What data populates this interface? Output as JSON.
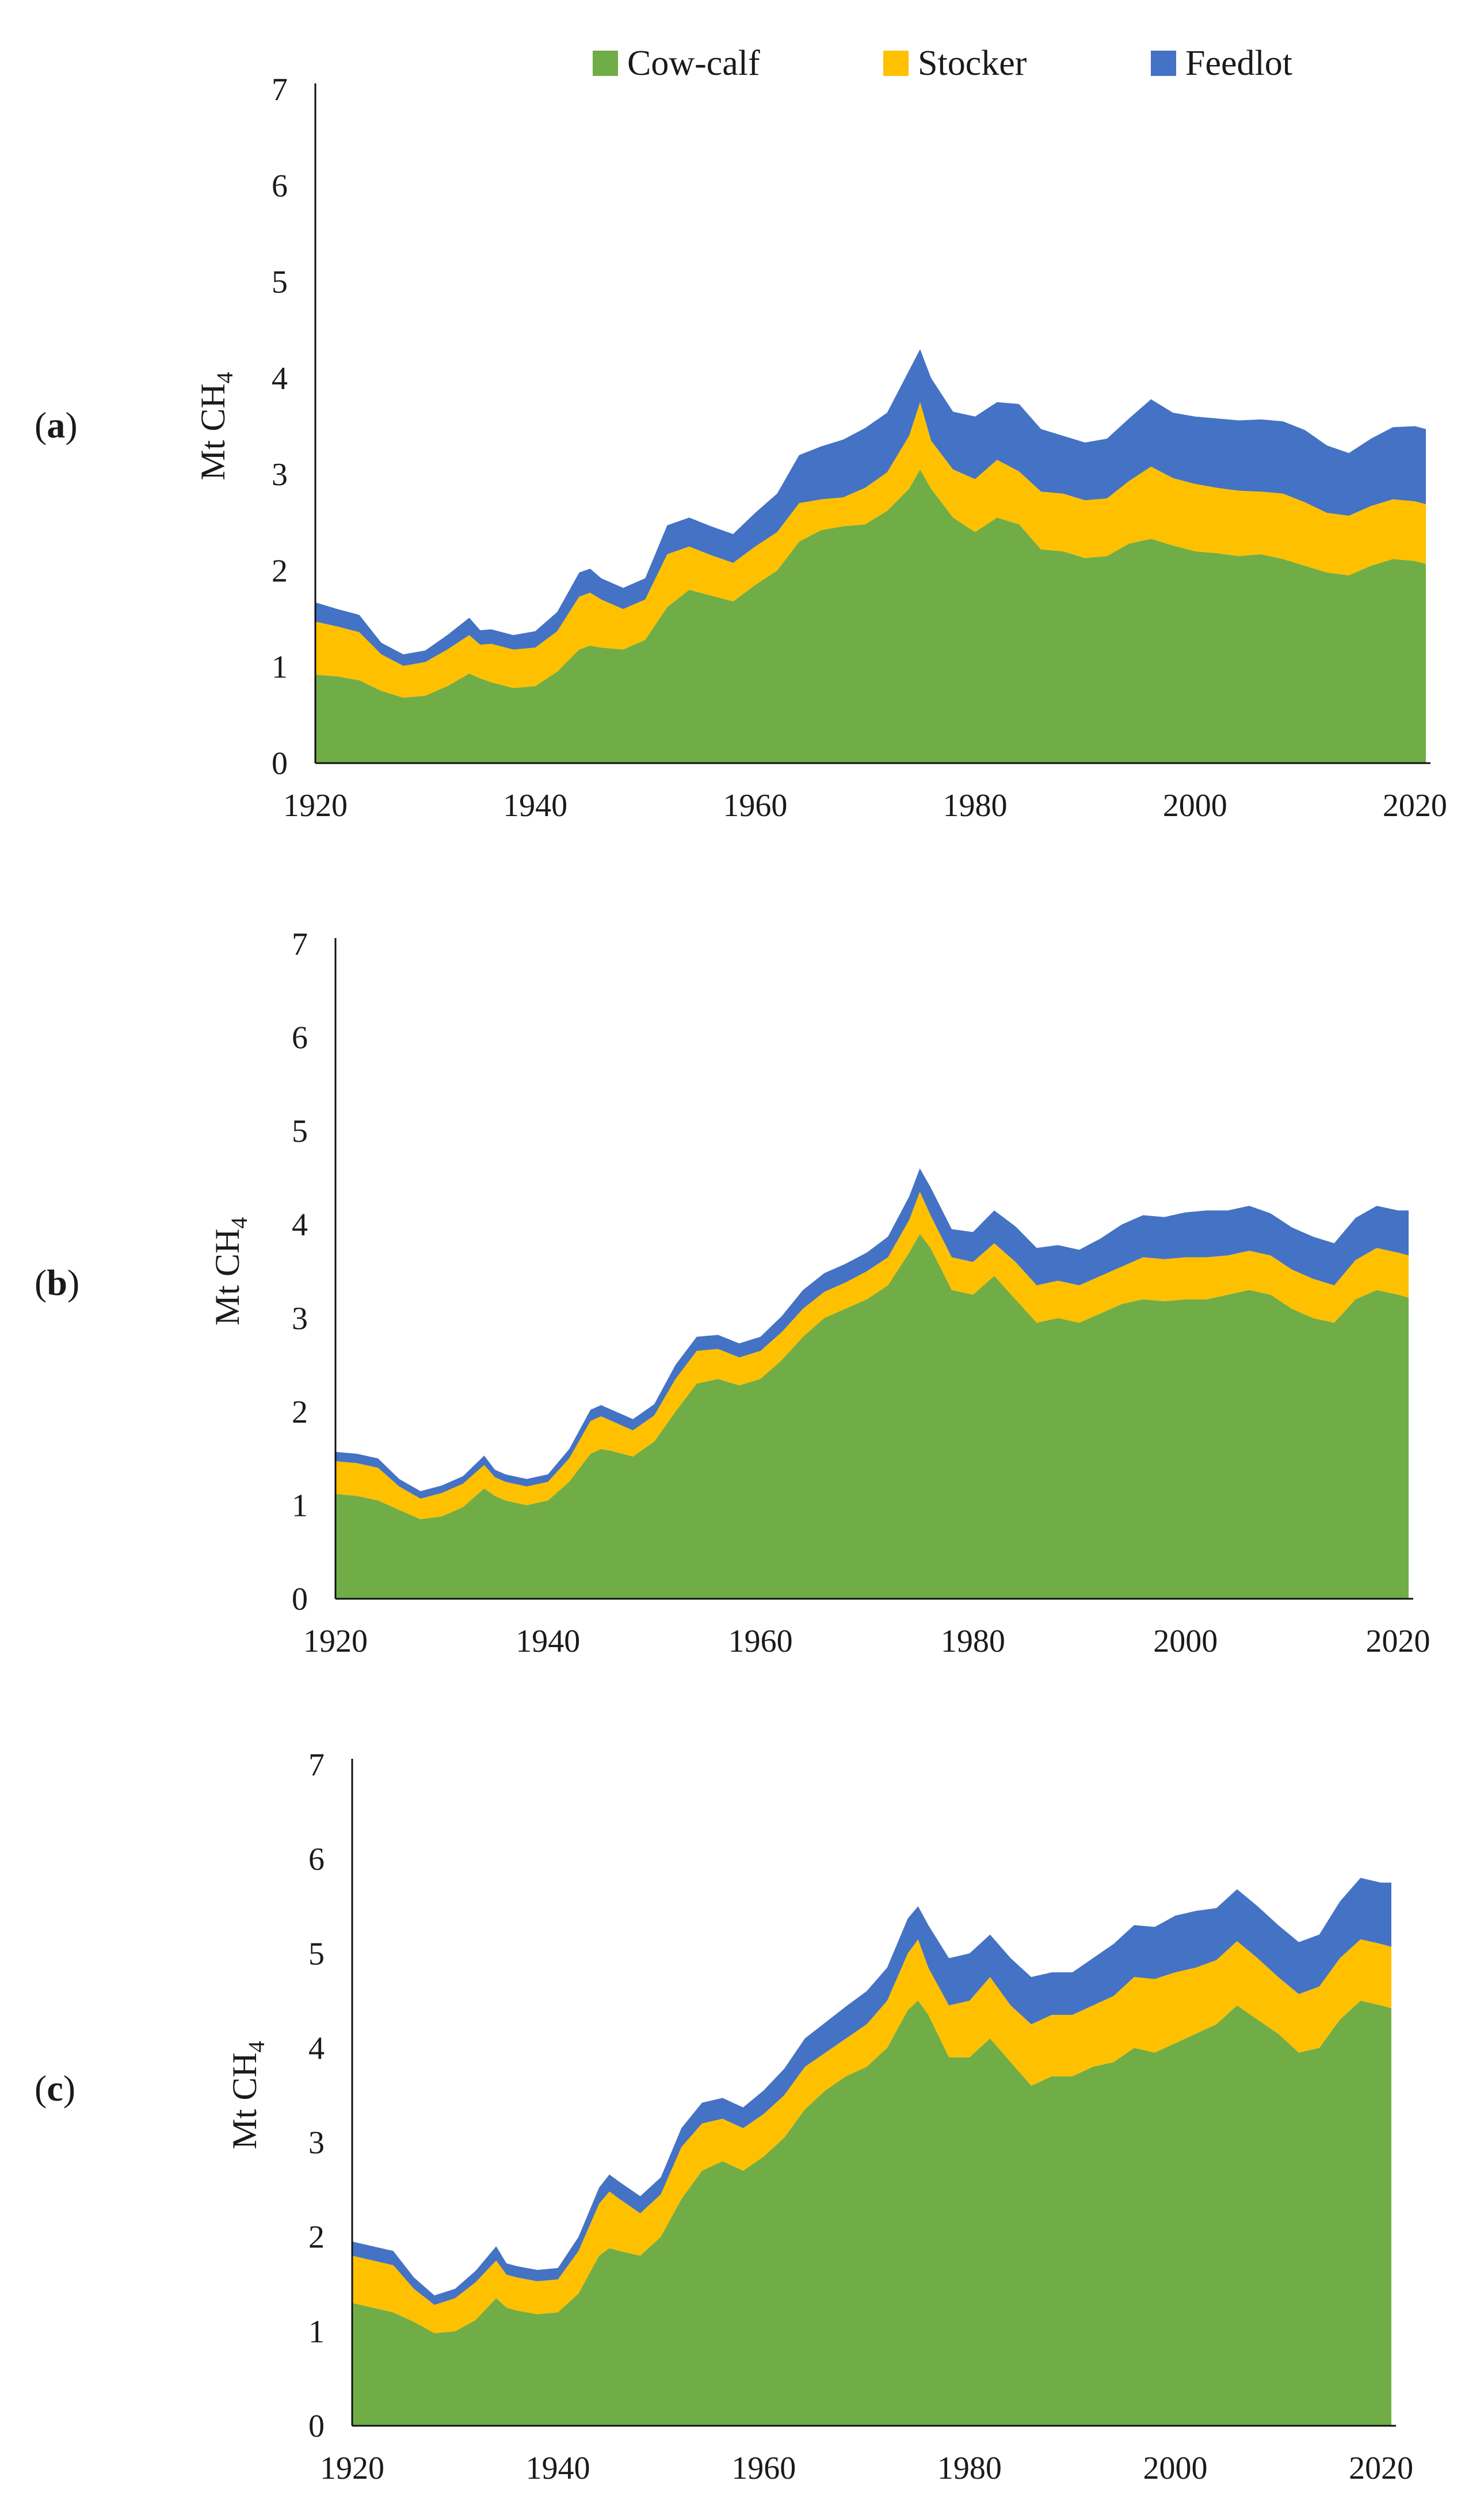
{
  "figure": {
    "legend": [
      {
        "name": "Cow-calf",
        "color": "#70AD47"
      },
      {
        "name": "Stocker",
        "color": "#FFC000"
      },
      {
        "name": "Feedlot",
        "color": "#4472C4"
      }
    ],
    "ylabel_main": "Mt CH",
    "ylabel_sub": "4"
  },
  "chart_data": [
    {
      "panel_label_open": "(",
      "panel_label_letter": "a",
      "panel_label_close": ")",
      "type": "area",
      "stacked": true,
      "title": "",
      "xlabel": "",
      "ylabel": "Mt CH4",
      "xlim": [
        1920,
        2021
      ],
      "ylim": [
        0,
        7
      ],
      "xticks": [
        1920,
        1940,
        1960,
        1980,
        2000,
        2020
      ],
      "yticks": [
        0,
        1,
        2,
        3,
        4,
        5,
        6,
        7
      ],
      "legend": "top",
      "x": [
        1920,
        1922,
        1924,
        1926,
        1928,
        1930,
        1932,
        1934,
        1935,
        1936,
        1938,
        1940,
        1942,
        1944,
        1945,
        1946,
        1948,
        1950,
        1952,
        1954,
        1956,
        1958,
        1960,
        1962,
        1964,
        1966,
        1968,
        1970,
        1972,
        1974,
        1975,
        1976,
        1978,
        1980,
        1982,
        1984,
        1986,
        1988,
        1990,
        1992,
        1994,
        1996,
        1998,
        2000,
        2002,
        2004,
        2006,
        2008,
        2010,
        2012,
        2014,
        2016,
        2018,
        2020,
        2021
      ],
      "series": [
        {
          "name": "Cow-calf",
          "values": [
            0.92,
            0.9,
            0.86,
            0.75,
            0.68,
            0.7,
            0.8,
            0.93,
            0.88,
            0.84,
            0.78,
            0.8,
            0.95,
            1.18,
            1.22,
            1.2,
            1.18,
            1.28,
            1.62,
            1.8,
            1.74,
            1.68,
            1.85,
            2.0,
            2.3,
            2.42,
            2.46,
            2.48,
            2.62,
            2.85,
            3.05,
            2.85,
            2.55,
            2.4,
            2.55,
            2.48,
            2.22,
            2.2,
            2.13,
            2.15,
            2.28,
            2.33,
            2.26,
            2.2,
            2.18,
            2.15,
            2.17,
            2.12,
            2.05,
            1.98,
            1.95,
            2.05,
            2.12,
            2.1,
            2.07
          ]
        },
        {
          "name": "Stocker",
          "values": [
            0.55,
            0.52,
            0.5,
            0.38,
            0.33,
            0.35,
            0.38,
            0.4,
            0.35,
            0.4,
            0.4,
            0.4,
            0.42,
            0.55,
            0.55,
            0.5,
            0.42,
            0.42,
            0.55,
            0.45,
            0.42,
            0.4,
            0.4,
            0.4,
            0.4,
            0.32,
            0.3,
            0.38,
            0.4,
            0.55,
            0.7,
            0.5,
            0.5,
            0.55,
            0.6,
            0.55,
            0.6,
            0.6,
            0.6,
            0.6,
            0.65,
            0.75,
            0.7,
            0.7,
            0.68,
            0.68,
            0.65,
            0.68,
            0.66,
            0.62,
            0.62,
            0.62,
            0.62,
            0.62,
            0.62
          ]
        },
        {
          "name": "Feedlot",
          "values": [
            0.2,
            0.18,
            0.18,
            0.12,
            0.12,
            0.12,
            0.15,
            0.18,
            0.15,
            0.15,
            0.15,
            0.17,
            0.2,
            0.25,
            0.25,
            0.22,
            0.22,
            0.22,
            0.3,
            0.3,
            0.3,
            0.3,
            0.35,
            0.4,
            0.5,
            0.55,
            0.6,
            0.62,
            0.62,
            0.68,
            0.55,
            0.65,
            0.6,
            0.65,
            0.6,
            0.7,
            0.65,
            0.6,
            0.6,
            0.62,
            0.65,
            0.7,
            0.68,
            0.7,
            0.72,
            0.73,
            0.75,
            0.75,
            0.75,
            0.7,
            0.65,
            0.7,
            0.75,
            0.78,
            0.78
          ]
        }
      ]
    },
    {
      "panel_label_open": "(",
      "panel_label_letter": "b",
      "panel_label_close": ")",
      "type": "area",
      "stacked": true,
      "title": "",
      "xlabel": "",
      "ylabel": "Mt CH4",
      "xlim": [
        1920,
        2021
      ],
      "ylim": [
        0,
        7
      ],
      "xticks": [
        1920,
        1940,
        1960,
        1980,
        2000,
        2020
      ],
      "yticks": [
        0,
        1,
        2,
        3,
        4,
        5,
        6,
        7
      ],
      "legend": "none",
      "x": [
        1920,
        1922,
        1924,
        1926,
        1928,
        1930,
        1932,
        1934,
        1935,
        1936,
        1938,
        1940,
        1942,
        1944,
        1945,
        1946,
        1948,
        1950,
        1952,
        1954,
        1956,
        1958,
        1960,
        1962,
        1964,
        1966,
        1968,
        1970,
        1972,
        1974,
        1975,
        1976,
        1978,
        1980,
        1982,
        1984,
        1986,
        1988,
        1990,
        1992,
        1994,
        1996,
        1998,
        2000,
        2002,
        2004,
        2006,
        2008,
        2010,
        2012,
        2014,
        2016,
        2018,
        2020,
        2021
      ],
      "series": [
        {
          "name": "Cow-calf",
          "values": [
            1.12,
            1.1,
            1.05,
            0.95,
            0.85,
            0.88,
            0.98,
            1.18,
            1.1,
            1.05,
            1.0,
            1.05,
            1.25,
            1.55,
            1.6,
            1.58,
            1.52,
            1.68,
            2.0,
            2.3,
            2.35,
            2.28,
            2.35,
            2.55,
            2.8,
            3.0,
            3.1,
            3.2,
            3.35,
            3.7,
            3.9,
            3.75,
            3.3,
            3.25,
            3.45,
            3.2,
            2.95,
            3.0,
            2.95,
            3.05,
            3.15,
            3.2,
            3.18,
            3.2,
            3.2,
            3.25,
            3.3,
            3.25,
            3.1,
            3.0,
            2.95,
            3.2,
            3.3,
            3.25,
            3.22
          ]
        },
        {
          "name": "Stocker",
          "values": [
            0.35,
            0.35,
            0.35,
            0.25,
            0.22,
            0.25,
            0.25,
            0.25,
            0.2,
            0.2,
            0.2,
            0.2,
            0.25,
            0.35,
            0.35,
            0.32,
            0.28,
            0.28,
            0.35,
            0.35,
            0.32,
            0.3,
            0.3,
            0.3,
            0.3,
            0.28,
            0.28,
            0.3,
            0.3,
            0.35,
            0.45,
            0.35,
            0.35,
            0.35,
            0.35,
            0.4,
            0.4,
            0.4,
            0.4,
            0.4,
            0.4,
            0.45,
            0.45,
            0.45,
            0.45,
            0.42,
            0.42,
            0.42,
            0.42,
            0.42,
            0.4,
            0.42,
            0.45,
            0.45,
            0.45
          ]
        },
        {
          "name": "Feedlot",
          "values": [
            0.1,
            0.1,
            0.1,
            0.08,
            0.08,
            0.08,
            0.08,
            0.1,
            0.08,
            0.08,
            0.08,
            0.08,
            0.1,
            0.12,
            0.12,
            0.12,
            0.12,
            0.12,
            0.15,
            0.15,
            0.15,
            0.15,
            0.15,
            0.17,
            0.2,
            0.2,
            0.2,
            0.2,
            0.22,
            0.25,
            0.25,
            0.3,
            0.3,
            0.32,
            0.35,
            0.38,
            0.4,
            0.38,
            0.38,
            0.4,
            0.45,
            0.45,
            0.45,
            0.48,
            0.5,
            0.48,
            0.48,
            0.45,
            0.45,
            0.45,
            0.45,
            0.45,
            0.45,
            0.45,
            0.48
          ]
        }
      ]
    },
    {
      "panel_label_open": "(",
      "panel_label_letter": "c",
      "panel_label_close": ")",
      "type": "area",
      "stacked": true,
      "title": "",
      "xlabel": "",
      "ylabel": "Mt CH4",
      "xlim": [
        1920,
        2021
      ],
      "ylim": [
        0,
        7
      ],
      "xticks": [
        1920,
        1940,
        1960,
        1980,
        2000,
        2020
      ],
      "yticks": [
        0,
        1,
        2,
        3,
        4,
        5,
        6,
        7
      ],
      "legend": "none",
      "x": [
        1920,
        1922,
        1924,
        1926,
        1928,
        1930,
        1932,
        1934,
        1935,
        1936,
        1938,
        1940,
        1942,
        1944,
        1945,
        1946,
        1948,
        1950,
        1952,
        1954,
        1956,
        1958,
        1960,
        1962,
        1964,
        1966,
        1968,
        1970,
        1972,
        1974,
        1975,
        1976,
        1978,
        1980,
        1982,
        1984,
        1986,
        1988,
        1990,
        1992,
        1994,
        1996,
        1998,
        2000,
        2002,
        2004,
        2006,
        2008,
        2010,
        2012,
        2014,
        2016,
        2018,
        2020,
        2021
      ],
      "series": [
        {
          "name": "Cow-calf",
          "values": [
            1.3,
            1.25,
            1.2,
            1.1,
            0.98,
            1.0,
            1.12,
            1.35,
            1.25,
            1.22,
            1.18,
            1.2,
            1.4,
            1.8,
            1.88,
            1.85,
            1.8,
            2.0,
            2.4,
            2.7,
            2.8,
            2.7,
            2.85,
            3.05,
            3.35,
            3.55,
            3.7,
            3.8,
            4.0,
            4.4,
            4.5,
            4.35,
            3.9,
            3.9,
            4.1,
            3.85,
            3.6,
            3.7,
            3.7,
            3.8,
            3.85,
            4.0,
            3.95,
            4.05,
            4.15,
            4.25,
            4.45,
            4.3,
            4.15,
            3.95,
            4.0,
            4.3,
            4.5,
            4.45,
            4.42
          ]
        },
        {
          "name": "Stocker",
          "values": [
            0.5,
            0.5,
            0.5,
            0.35,
            0.3,
            0.35,
            0.4,
            0.4,
            0.35,
            0.35,
            0.35,
            0.35,
            0.45,
            0.55,
            0.6,
            0.55,
            0.45,
            0.45,
            0.55,
            0.5,
            0.45,
            0.45,
            0.45,
            0.45,
            0.45,
            0.4,
            0.4,
            0.45,
            0.5,
            0.6,
            0.65,
            0.5,
            0.55,
            0.6,
            0.65,
            0.6,
            0.65,
            0.65,
            0.65,
            0.65,
            0.7,
            0.75,
            0.78,
            0.75,
            0.7,
            0.68,
            0.68,
            0.65,
            0.6,
            0.62,
            0.65,
            0.65,
            0.65,
            0.65,
            0.65
          ]
        },
        {
          "name": "Feedlot",
          "values": [
            0.15,
            0.15,
            0.15,
            0.12,
            0.1,
            0.1,
            0.12,
            0.15,
            0.12,
            0.12,
            0.12,
            0.12,
            0.15,
            0.17,
            0.18,
            0.18,
            0.18,
            0.18,
            0.2,
            0.22,
            0.22,
            0.22,
            0.25,
            0.28,
            0.3,
            0.32,
            0.34,
            0.35,
            0.35,
            0.37,
            0.35,
            0.45,
            0.5,
            0.5,
            0.45,
            0.5,
            0.5,
            0.45,
            0.45,
            0.5,
            0.55,
            0.55,
            0.55,
            0.6,
            0.6,
            0.55,
            0.55,
            0.55,
            0.55,
            0.55,
            0.55,
            0.6,
            0.65,
            0.65,
            0.68
          ]
        }
      ]
    }
  ]
}
